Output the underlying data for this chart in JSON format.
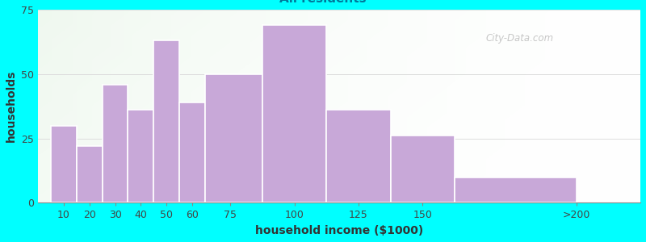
{
  "xlabel": "household income ($1000)",
  "ylabel": "households",
  "background_outer": "#00FFFF",
  "bar_color": "#C8A8D8",
  "bar_edge_color": "#ffffff",
  "categories": [
    "10",
    "20",
    "30",
    "40",
    "50",
    "60",
    "75",
    "100",
    "125",
    "150",
    ">200"
  ],
  "values": [
    30,
    22,
    46,
    36,
    63,
    39,
    50,
    69,
    36,
    26,
    10
  ],
  "bar_left_edges": [
    5,
    15,
    25,
    35,
    45,
    55,
    65,
    87.5,
    112.5,
    137.5,
    162.5
  ],
  "bar_widths": [
    10,
    10,
    10,
    10,
    10,
    10,
    22.5,
    25,
    25,
    25,
    47.5
  ],
  "ylim": [
    0,
    75
  ],
  "yticks": [
    0,
    25,
    50,
    75
  ],
  "xlim": [
    0,
    235
  ],
  "xtick_positions": [
    10,
    20,
    30,
    40,
    50,
    60,
    75,
    100,
    125,
    150,
    210
  ],
  "title_fontsize": 14,
  "subtitle_fontsize": 11,
  "label_fontsize": 10,
  "tick_fontsize": 9,
  "watermark": "City-Data.com"
}
